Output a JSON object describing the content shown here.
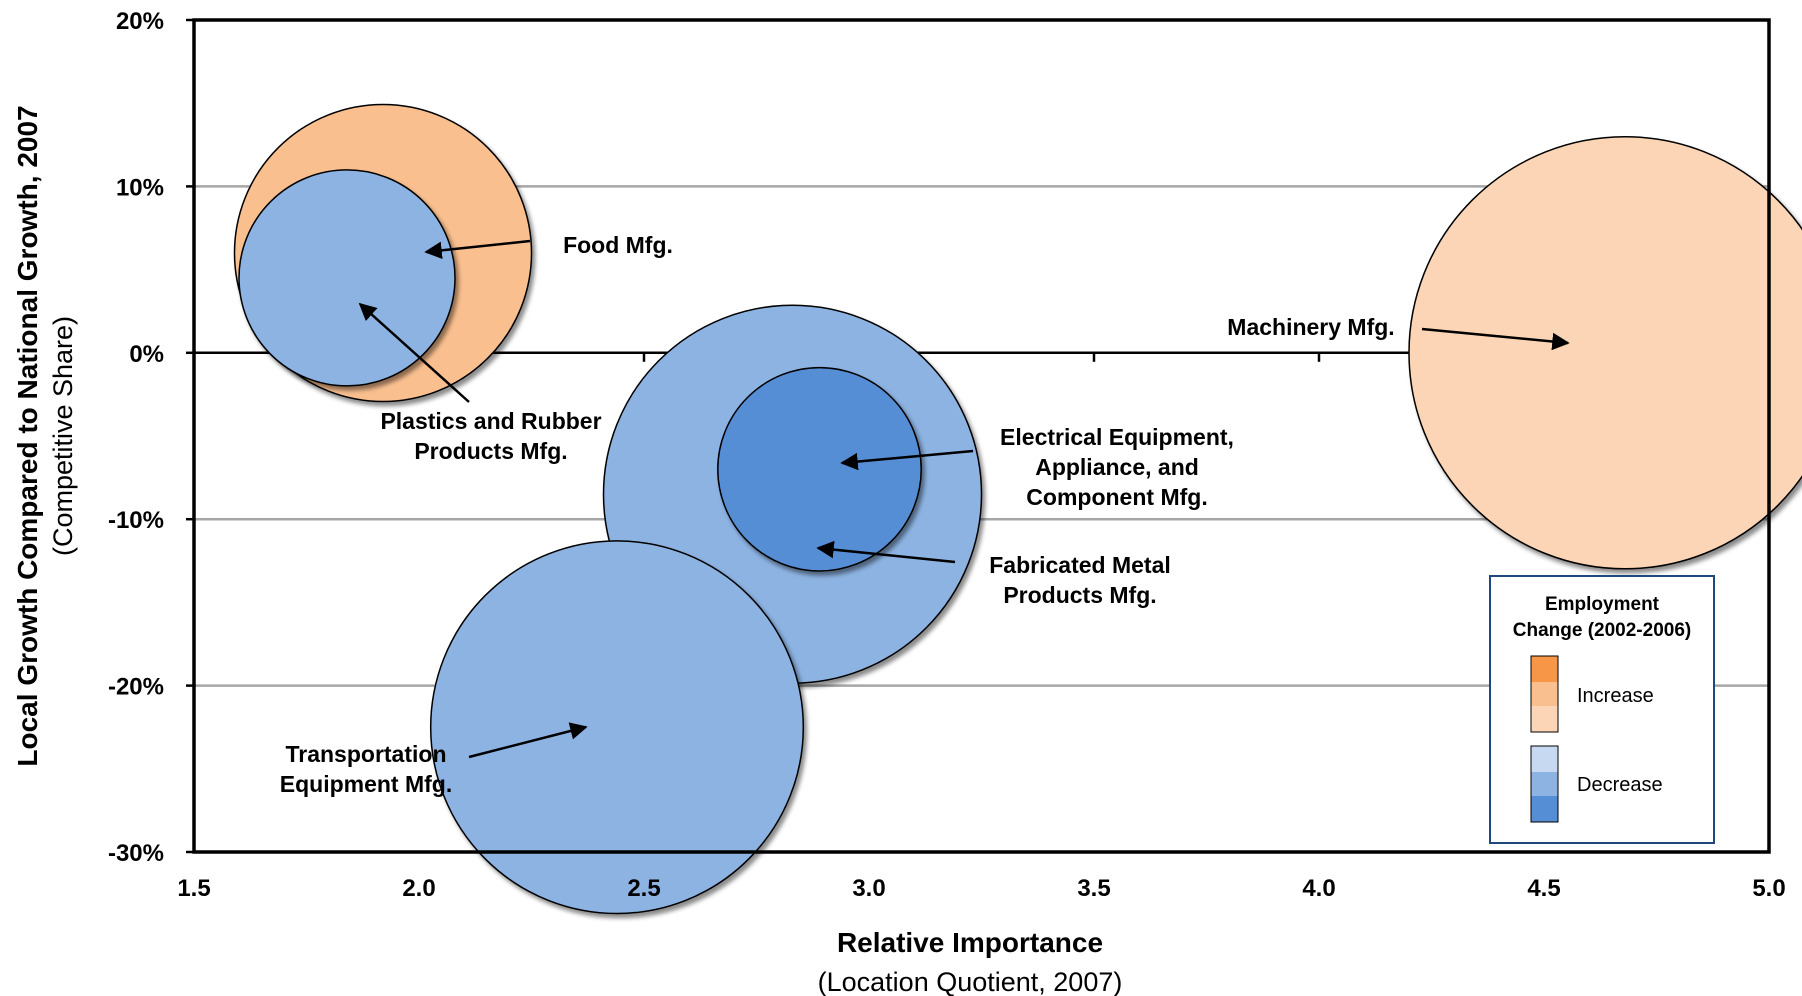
{
  "chart_data": {
    "type": "scatter",
    "subtype": "bubble",
    "xlabel": "Relative Importance",
    "xlabel_sub": "(Location Quotient, 2007)",
    "ylabel": "Local Growth Compared to National Growth, 2007",
    "ylabel_sub": "(Competitive Share)",
    "xlim": [
      1.5,
      5.0
    ],
    "ylim": [
      -30,
      20
    ],
    "x_ticks": [
      "1.5",
      "2.0",
      "2.5",
      "3.0",
      "3.5",
      "4.0",
      "4.5",
      "5.0"
    ],
    "x_tick_values": [
      1.5,
      2.0,
      2.5,
      3.0,
      3.5,
      4.0,
      4.5,
      5.0
    ],
    "y_ticks": [
      "20%",
      "10%",
      "0%",
      "-10%",
      "-20%",
      "-30%"
    ],
    "y_tick_values": [
      20,
      10,
      0,
      -10,
      -20,
      -30
    ],
    "grid": "horizontal",
    "colors": {
      "increase_light": "#fbd5b5",
      "increase_medium": "#fabf8f",
      "increase_dark": "#f79646",
      "decrease_light": "#c6d9f1",
      "decrease_medium": "#8db3e2",
      "decrease_dark": "#558ed5"
    },
    "points": [
      {
        "name": "Food Mfg.",
        "lines": [
          "Food Mfg."
        ],
        "x": 1.92,
        "y": 6.0,
        "size": 0.165,
        "change": "increase",
        "shade": "medium"
      },
      {
        "name": "Plastics and Rubber Products Mfg.",
        "lines": [
          "Plastics and Rubber",
          "Products Mfg."
        ],
        "x": 1.84,
        "y": 4.5,
        "size": 0.12,
        "change": "decrease",
        "shade": "medium"
      },
      {
        "name": "Machinery Mfg.",
        "lines": [
          "Machinery Mfg."
        ],
        "x": 4.68,
        "y": 0.0,
        "size": 0.24,
        "change": "increase",
        "shade": "light"
      },
      {
        "name": "Fabricated Metal Products Mfg.",
        "lines": [
          "Fabricated Metal",
          "Products Mfg."
        ],
        "x": 2.83,
        "y": -8.5,
        "size": 0.21,
        "change": "decrease",
        "shade": "medium"
      },
      {
        "name": "Electrical Equipment, Appliance, and Component Mfg.",
        "lines": [
          "Electrical Equipment,",
          "Appliance, and",
          "Component Mfg."
        ],
        "x": 2.89,
        "y": -7.0,
        "size": 0.113,
        "change": "decrease",
        "shade": "dark"
      },
      {
        "name": "Transportation Equipment Mfg.",
        "lines": [
          "Transportation",
          "Equipment Mfg."
        ],
        "x": 2.44,
        "y": -22.5,
        "size": 0.207,
        "change": "decrease",
        "shade": "medium"
      }
    ],
    "legend": {
      "title_lines": [
        "Employment",
        "Change (2002-2006)"
      ],
      "increase_label": "Increase",
      "decrease_label": "Decrease",
      "position": "bottom-right"
    }
  }
}
